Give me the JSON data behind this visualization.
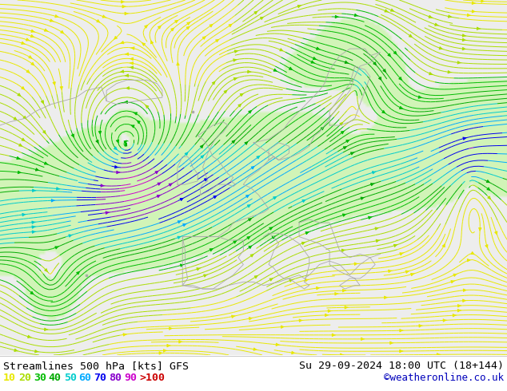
{
  "title_left": "Streamlines 500 hPa [kts] GFS",
  "title_right": "Su 29-09-2024 18:00 UTC (18+144)",
  "credit": "©weatheronline.co.uk",
  "legend_values": [
    "10",
    "20",
    "30",
    "40",
    "50",
    "60",
    "70",
    "80",
    "90",
    ">100"
  ],
  "legend_colors": [
    "#e8e800",
    "#aadd00",
    "#00bb00",
    "#00aa00",
    "#00cccc",
    "#00aaff",
    "#0000ee",
    "#8800cc",
    "#cc00cc",
    "#cc0000"
  ],
  "fig_width": 6.34,
  "fig_height": 4.9,
  "dpi": 100,
  "map_bg_color": "#f0f0f0",
  "land_green_color": "#c8f0b0",
  "ocean_color": "#e8e8e8",
  "stream_bounds": [
    0,
    10,
    20,
    30,
    40,
    50,
    60,
    70,
    80,
    90,
    200
  ],
  "stream_colors": [
    "#e8e800",
    "#aadd00",
    "#00bb00",
    "#00aa00",
    "#00cccc",
    "#00aaff",
    "#0000ee",
    "#8800cc",
    "#cc00cc",
    "#cc0000"
  ]
}
